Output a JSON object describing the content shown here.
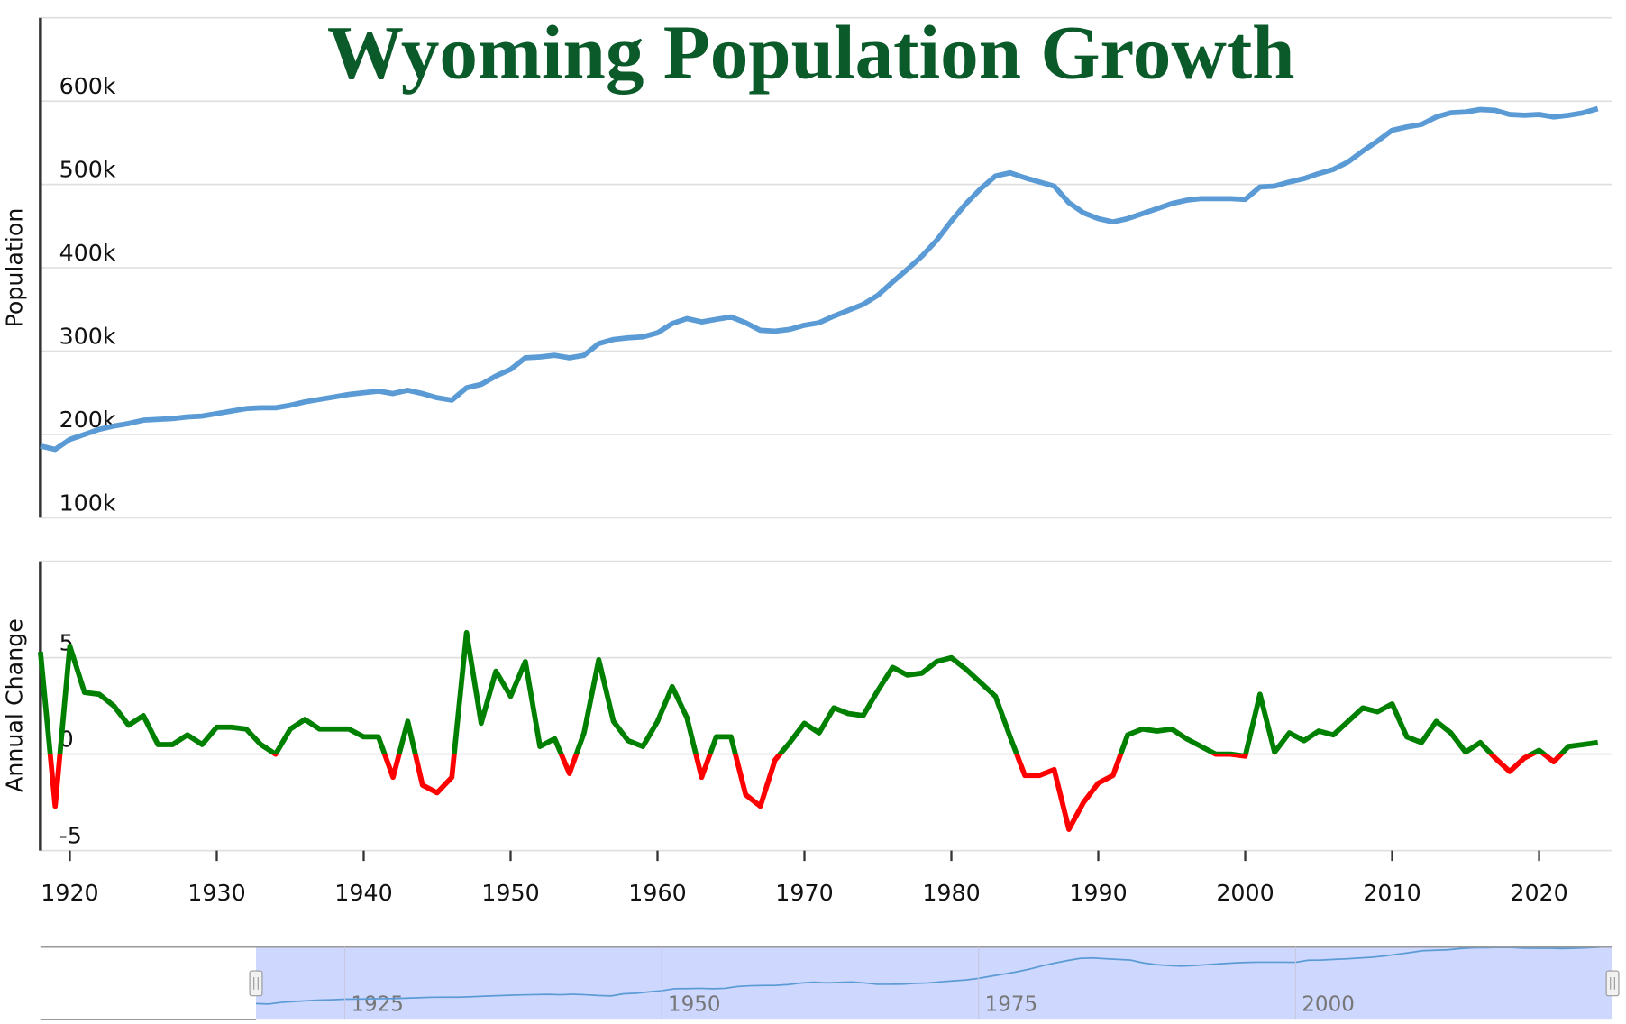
{
  "chart_data": [
    {
      "type": "line",
      "title": "Wyoming Population Growth",
      "y_label": "Population",
      "x": [
        1918,
        1919,
        1920,
        1921,
        1922,
        1923,
        1924,
        1925,
        1926,
        1927,
        1928,
        1929,
        1930,
        1931,
        1932,
        1933,
        1934,
        1935,
        1936,
        1937,
        1938,
        1939,
        1940,
        1941,
        1942,
        1943,
        1944,
        1945,
        1946,
        1947,
        1948,
        1949,
        1950,
        1951,
        1952,
        1953,
        1954,
        1955,
        1956,
        1957,
        1958,
        1959,
        1960,
        1961,
        1962,
        1963,
        1964,
        1965,
        1966,
        1967,
        1968,
        1969,
        1970,
        1971,
        1972,
        1973,
        1974,
        1975,
        1976,
        1977,
        1978,
        1979,
        1980,
        1981,
        1982,
        1983,
        1984,
        1985,
        1986,
        1987,
        1988,
        1989,
        1990,
        1991,
        1992,
        1993,
        1994,
        1995,
        1996,
        1997,
        1998,
        1999,
        2000,
        2001,
        2002,
        2003,
        2004,
        2005,
        2006,
        2007,
        2008,
        2009,
        2010,
        2011,
        2012,
        2013,
        2014,
        2015,
        2016,
        2017,
        2018,
        2019,
        2020,
        2021,
        2022,
        2023,
        2024
      ],
      "series": [
        {
          "name": "Population",
          "color": "#5b9bd5",
          "values": [
            186000,
            182000,
            194000,
            200000,
            206000,
            210000,
            213000,
            217000,
            218000,
            219000,
            221000,
            222000,
            225000,
            228000,
            231000,
            232000,
            232000,
            235000,
            239000,
            242000,
            245000,
            248000,
            250000,
            252000,
            249000,
            253000,
            249000,
            244000,
            241000,
            256000,
            260000,
            270000,
            278000,
            292000,
            293000,
            295000,
            292000,
            295000,
            309000,
            314000,
            316000,
            317000,
            322000,
            333000,
            339000,
            335000,
            338000,
            341000,
            334000,
            325000,
            324000,
            326000,
            331000,
            334000,
            342000,
            349000,
            356000,
            367000,
            383000,
            398000,
            414000,
            433000,
            456000,
            477000,
            495000,
            510000,
            514000,
            508000,
            503000,
            498000,
            478000,
            466000,
            459000,
            455000,
            459000,
            465000,
            471000,
            477000,
            481000,
            483000,
            483000,
            483000,
            482000,
            497000,
            498000,
            503000,
            507000,
            513000,
            518000,
            527000,
            540000,
            552000,
            565000,
            569000,
            572000,
            581000,
            586000,
            587000,
            590000,
            589000,
            584000,
            583000,
            584000,
            581000,
            583000,
            586000,
            591000
          ]
        }
      ],
      "xlim": [
        1918,
        2025
      ],
      "ylim": [
        100000,
        700000
      ],
      "yticks": [
        {
          "value": 100000,
          "label": "100k"
        },
        {
          "value": 200000,
          "label": "200k"
        },
        {
          "value": 300000,
          "label": "300k"
        },
        {
          "value": 400000,
          "label": "400k"
        },
        {
          "value": 500000,
          "label": "500k"
        },
        {
          "value": 600000,
          "label": "600k"
        }
      ],
      "grid": true,
      "navigator": {
        "xlim": [
          1901,
          2025
        ],
        "ylim": [
          100000,
          700000
        ],
        "xticks": [
          1925,
          1950,
          1975,
          2000
        ],
        "selection": [
          1918,
          2025
        ]
      }
    },
    {
      "type": "line",
      "y_label": "Annual Change",
      "x": [
        1918,
        1919,
        1920,
        1921,
        1922,
        1923,
        1924,
        1925,
        1926,
        1927,
        1928,
        1929,
        1930,
        1931,
        1932,
        1933,
        1934,
        1935,
        1936,
        1937,
        1938,
        1939,
        1940,
        1941,
        1942,
        1943,
        1944,
        1945,
        1946,
        1947,
        1948,
        1949,
        1950,
        1951,
        1952,
        1953,
        1954,
        1955,
        1956,
        1957,
        1958,
        1959,
        1960,
        1961,
        1962,
        1963,
        1964,
        1965,
        1966,
        1967,
        1968,
        1969,
        1970,
        1971,
        1972,
        1973,
        1974,
        1975,
        1976,
        1977,
        1978,
        1979,
        1980,
        1981,
        1982,
        1983,
        1984,
        1985,
        1986,
        1987,
        1988,
        1989,
        1990,
        1991,
        1992,
        1993,
        1994,
        1995,
        1996,
        1997,
        1998,
        1999,
        2000,
        2001,
        2002,
        2003,
        2004,
        2005,
        2006,
        2007,
        2008,
        2009,
        2010,
        2011,
        2012,
        2013,
        2014,
        2015,
        2016,
        2017,
        2018,
        2019,
        2020,
        2021,
        2022,
        2023,
        2024
      ],
      "series": [
        {
          "name": "Annual Change",
          "color": "#008000",
          "negative_color": "#ff0000",
          "values": [
            5.3,
            -2.7,
            5.6,
            3.2,
            3.1,
            2.5,
            1.5,
            2.0,
            0.5,
            0.5,
            1.0,
            0.5,
            1.4,
            1.4,
            1.3,
            0.5,
            0.0,
            1.3,
            1.8,
            1.3,
            1.3,
            1.3,
            0.9,
            0.9,
            -1.2,
            1.7,
            -1.6,
            -2.0,
            -1.2,
            6.3,
            1.6,
            4.3,
            3.0,
            4.8,
            0.4,
            0.8,
            -1.0,
            1.1,
            4.9,
            1.7,
            0.7,
            0.4,
            1.7,
            3.5,
            1.9,
            -1.2,
            0.9,
            0.9,
            -2.1,
            -2.7,
            -0.3,
            0.6,
            1.6,
            1.1,
            2.4,
            2.1,
            2.0,
            3.3,
            4.5,
            4.1,
            4.2,
            4.8,
            5.0,
            4.4,
            3.7,
            3.0,
            0.9,
            -1.1,
            -1.1,
            -0.8,
            -3.9,
            -2.5,
            -1.5,
            -1.1,
            1.0,
            1.3,
            1.2,
            1.3,
            0.8,
            0.4,
            0.0,
            0.0,
            -0.1,
            3.1,
            0.1,
            1.1,
            0.7,
            1.2,
            1.0,
            1.7,
            2.4,
            2.2,
            2.6,
            0.9,
            0.6,
            1.7,
            1.1,
            0.1,
            0.6,
            -0.2,
            -0.9,
            -0.2,
            0.2,
            -0.4,
            0.4,
            0.5,
            0.6
          ]
        }
      ],
      "xlim": [
        1918,
        2025
      ],
      "ylim": [
        -5,
        10
      ],
      "xticks": [
        1920,
        1930,
        1940,
        1950,
        1960,
        1970,
        1980,
        1990,
        2000,
        2010,
        2020
      ],
      "yticks": [
        -5,
        0,
        5
      ],
      "grid": true
    }
  ]
}
